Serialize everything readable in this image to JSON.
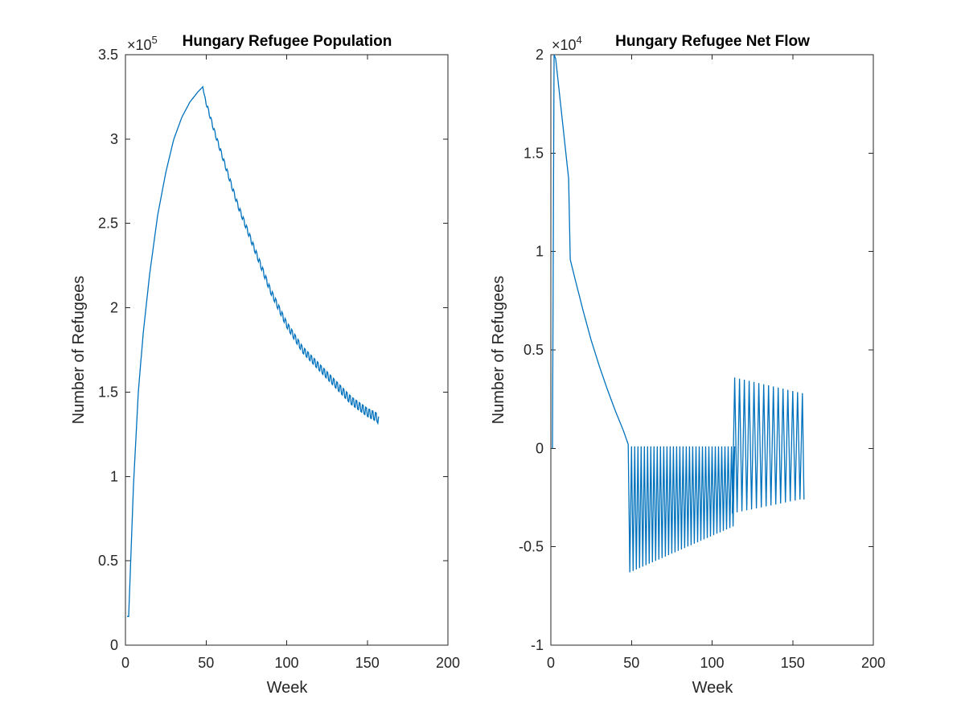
{
  "figure": {
    "background": "#ffffff"
  },
  "chart_data": [
    {
      "type": "line",
      "title": "Hungary Refugee Population",
      "xlabel": "Week",
      "ylabel": "Number of Refugees",
      "xlim": [
        0,
        200
      ],
      "ylim": [
        0,
        3.5
      ],
      "y_exponent_base": "×10",
      "y_exponent_power": "5",
      "xticks": [
        0,
        50,
        100,
        150,
        200
      ],
      "xtick_labels": [
        "0",
        "50",
        "100",
        "150",
        "200"
      ],
      "yticks": [
        0,
        0.5,
        1,
        1.5,
        2,
        2.5,
        3,
        3.5
      ],
      "ytick_labels": [
        "0",
        "0.5",
        "1",
        "1.5",
        "2",
        "2.5",
        "3",
        "3.5"
      ],
      "grid": false,
      "line_color": "#0072BD",
      "series": [
        {
          "x": [
            1,
            2,
            5,
            8,
            11,
            15,
            20,
            25,
            30,
            35,
            40,
            45,
            48,
            49,
            55,
            60,
            70,
            80,
            90,
            100,
            110,
            120,
            130,
            140,
            150,
            156,
            157
          ],
          "y": [
            0.17,
            0.17,
            0.95,
            1.5,
            1.85,
            2.2,
            2.55,
            2.8,
            3.0,
            3.13,
            3.22,
            3.28,
            3.31,
            3.25,
            3.05,
            2.9,
            2.6,
            2.35,
            2.1,
            1.9,
            1.75,
            1.65,
            1.55,
            1.45,
            1.38,
            1.35,
            1.33
          ],
          "oscillation_start": 49,
          "oscillation_period": 2,
          "oscillation_amplitude": [
            0.02,
            0.05
          ]
        }
      ]
    },
    {
      "type": "line",
      "title": "Hungary Refugee Net Flow",
      "xlabel": "Week",
      "ylabel": "Number of Refugees",
      "xlim": [
        0,
        200
      ],
      "ylim": [
        -1,
        2
      ],
      "y_exponent_base": "×10",
      "y_exponent_power": "4",
      "xticks": [
        0,
        50,
        100,
        150,
        200
      ],
      "xtick_labels": [
        "0",
        "50",
        "100",
        "150",
        "200"
      ],
      "yticks": [
        -1,
        -0.5,
        0,
        0.5,
        1,
        1.5,
        2
      ],
      "ytick_labels": [
        "-1",
        "-0.5",
        "0",
        "0.5",
        "1",
        "1.5",
        "2"
      ],
      "grid": false,
      "line_color": "#0072BD",
      "series": [
        {
          "x": [
            1,
            2,
            3,
            11,
            12,
            15,
            20,
            25,
            30,
            35,
            40,
            45,
            48
          ],
          "y": [
            0.0,
            2.0,
            1.98,
            1.37,
            0.96,
            0.86,
            0.7,
            0.55,
            0.42,
            0.3,
            0.19,
            0.09,
            0.02
          ],
          "spikes_phase1": {
            "x_start": 49,
            "x_end": 114,
            "period": 2,
            "high": 0.01,
            "low_start": -0.63,
            "low_end": -0.39
          },
          "spikes_phase2": {
            "x_start": 114,
            "x_end": 156,
            "period": 3,
            "high_start": 0.36,
            "high_end": 0.28,
            "low_start": -0.33,
            "low_end": -0.26
          }
        }
      ]
    }
  ]
}
